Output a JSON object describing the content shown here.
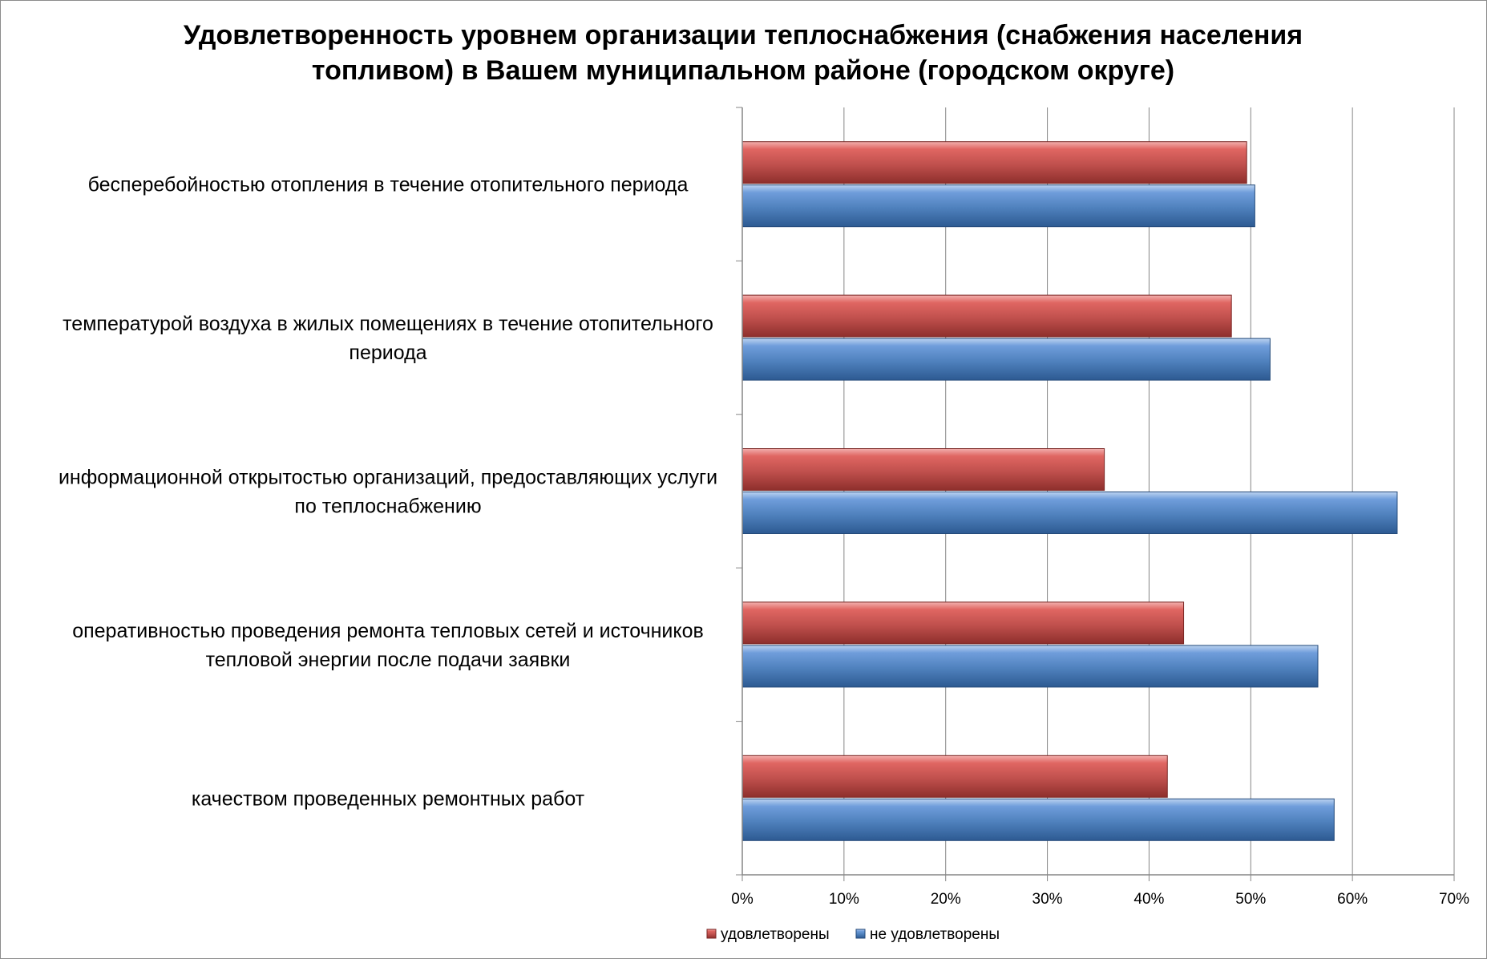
{
  "chart_data": {
    "type": "bar",
    "orientation": "horizontal",
    "title": "Удовлетворенность уровнем организации теплоснабжения (снабжения населения топливом) в Вашем муниципальном районе (городском округе)",
    "title_lines": [
      "Удовлетворенность уровнем организации теплоснабжения (снабжения населения",
      "топливом) в Вашем муниципальном районе (городском округе)"
    ],
    "categories": [
      "бесперебойностью отопления в течение отопительного периода",
      "температурой воздуха в жилых помещениях в течение отопительного периода",
      "информационной открытостью организаций, предоставляющих услуги по теплоснабжению",
      "оперативностью проведения ремонта тепловых сетей и источников тепловой энергии после подачи заявки",
      "качеством проведенных ремонтных работ"
    ],
    "category_lines": [
      [
        "бесперебойностью  отопления в течение отопительного периода"
      ],
      [
        "температурой  воздуха в жилых помещениях в течение отопительного",
        "периода"
      ],
      [
        "информационной открытостью  организаций, предоставляющих услуги",
        "по теплоснабжению"
      ],
      [
        "оперативностью проведения ремонта тепловых сетей и источников",
        "тепловой энергии после подачи заявки"
      ],
      [
        "качеством проведенных ремонтных работ"
      ]
    ],
    "series": [
      {
        "name": "удовлетворены",
        "color": "#c0504d",
        "values": [
          49.6,
          48.1,
          35.6,
          43.4,
          41.8
        ]
      },
      {
        "name": "не удовлетворены",
        "color": "#4f81bd",
        "values": [
          50.4,
          51.9,
          64.4,
          56.6,
          58.2
        ]
      }
    ],
    "xlim": [
      0,
      70
    ],
    "x_ticks": [
      "0%",
      "10%",
      "20%",
      "30%",
      "40%",
      "50%",
      "60%",
      "70%"
    ],
    "x_unit": "%",
    "grid": true,
    "legend_position": "bottom"
  }
}
